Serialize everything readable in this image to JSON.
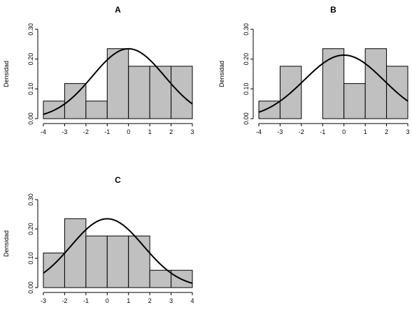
{
  "chart_data": [
    {
      "type": "bar",
      "title": "A",
      "xlabel": "",
      "ylabel": "Densidad",
      "xlim": [
        -4,
        3
      ],
      "ylim": [
        0,
        0.3
      ],
      "xticks": [
        "-4",
        "-3",
        "-2",
        "-1",
        "0",
        "1",
        "2",
        "3"
      ],
      "yticks": [
        "0.00",
        "0.10",
        "0.20",
        "0.30"
      ],
      "bins": [
        [
          -4,
          -3
        ],
        [
          -3,
          -2
        ],
        [
          -2,
          -1
        ],
        [
          -1,
          0
        ],
        [
          0,
          1
        ],
        [
          1,
          2
        ],
        [
          2,
          3
        ]
      ],
      "values": [
        0.059,
        0.118,
        0.059,
        0.235,
        0.176,
        0.176,
        0.176
      ],
      "curve": {
        "mean": 0,
        "sd": 1.7
      }
    },
    {
      "type": "bar",
      "title": "B",
      "xlabel": "",
      "ylabel": "Densidad",
      "xlim": [
        -4,
        3
      ],
      "ylim": [
        0,
        0.3
      ],
      "xticks": [
        "-4",
        "-3",
        "-2",
        "-1",
        "0",
        "1",
        "2",
        "3"
      ],
      "yticks": [
        "0.00",
        "0.10",
        "0.20",
        "0.30"
      ],
      "bins": [
        [
          -4,
          -3
        ],
        [
          -3,
          -2
        ],
        [
          -2,
          -1
        ],
        [
          -1,
          0
        ],
        [
          0,
          1
        ],
        [
          1,
          2
        ],
        [
          2,
          3
        ]
      ],
      "values": [
        0.059,
        0.176,
        0,
        0.235,
        0.118,
        0.235,
        0.176
      ],
      "curve": {
        "mean": 0,
        "sd": 1.87
      }
    },
    {
      "type": "bar",
      "title": "C",
      "xlabel": "",
      "ylabel": "Densidad",
      "xlim": [
        -3,
        4
      ],
      "ylim": [
        0,
        0.3
      ],
      "xticks": [
        "-3",
        "-2",
        "-1",
        "0",
        "1",
        "2",
        "3",
        "4"
      ],
      "yticks": [
        "0.00",
        "0.10",
        "0.20",
        "0.30"
      ],
      "bins": [
        [
          -3,
          -2
        ],
        [
          -2,
          -1
        ],
        [
          -1,
          0
        ],
        [
          0,
          1
        ],
        [
          1,
          2
        ],
        [
          2,
          3
        ],
        [
          3,
          4
        ]
      ],
      "values": [
        0.118,
        0.235,
        0.176,
        0.176,
        0.176,
        0.059,
        0.059
      ],
      "curve": {
        "mean": 0,
        "sd": 1.7
      }
    }
  ],
  "colors": {
    "bar_fill": "#c0c0c0",
    "bar_stroke": "#000000",
    "curve": "#000000",
    "axis": "#000000"
  }
}
